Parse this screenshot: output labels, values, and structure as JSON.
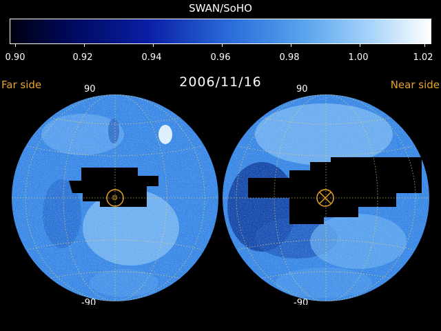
{
  "colorbar": {
    "title": "SWAN/SoHO",
    "ticks": [
      "0.90",
      "0.92",
      "0.94",
      "0.96",
      "0.98",
      "1.00",
      "1.02"
    ]
  },
  "header": {
    "date": "2006/11/16",
    "left_label": "Far side",
    "right_label": "Near side"
  },
  "hemispheres": {
    "left_top_lat": "90",
    "right_top_lat": "90",
    "left_bottom_lat": "-90",
    "right_bottom_lat": "-90"
  },
  "colors": {
    "accent": "#e7a32a",
    "map_base": "#3a88e6",
    "map_light": "#b5dcff",
    "map_dark": "#123f9e",
    "grid": "#f0d36a"
  }
}
